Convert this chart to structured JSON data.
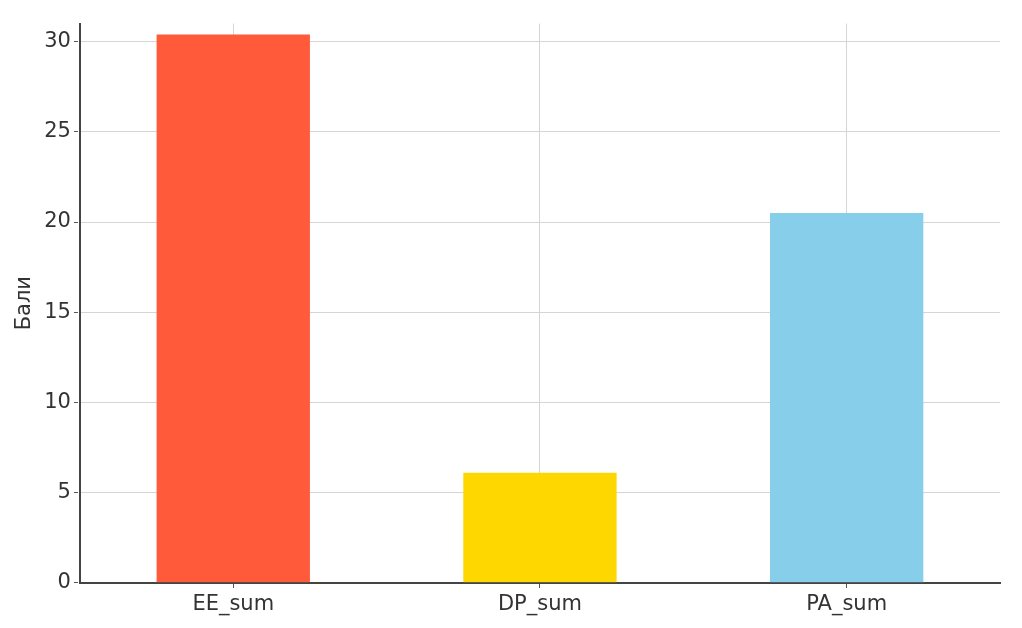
{
  "chart_data": {
    "type": "bar",
    "ylabel": "Бали",
    "categories": [
      "EE_sum",
      "DP_sum",
      "PA_sum"
    ],
    "values": [
      30.4,
      6.1,
      20.5
    ],
    "colors": [
      "#ff5b3a",
      "#ffd700",
      "#87ceeb"
    ],
    "ylim": [
      0,
      31
    ],
    "yticks": [
      0,
      5,
      10,
      15,
      20,
      25,
      30
    ],
    "grid": true,
    "legend": false
  }
}
